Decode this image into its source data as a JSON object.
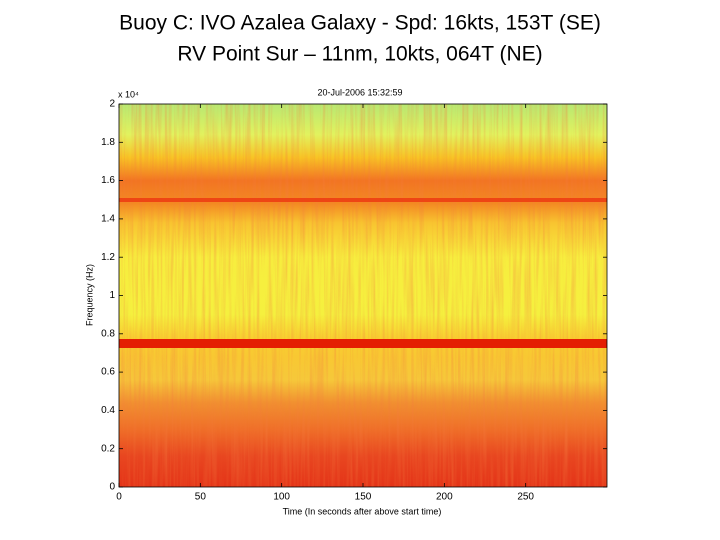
{
  "header": {
    "line1": "Buoy C: IVO Azalea Galaxy - Spd: 16kts, 153T (SE)",
    "line2": "RV Point Sur – 11nm,   10kts, 064T (NE)"
  },
  "chart_data": {
    "type": "spectrogram",
    "title": "20-Jul-2006 15:32:59",
    "x_label": "Time (In seconds after above start time)",
    "y_label": "Frequency (Hz)",
    "y_multiplier": "x 10⁴",
    "xlim": [
      0,
      300
    ],
    "xticks": [
      0,
      50,
      100,
      150,
      200,
      250
    ],
    "ylim": [
      0,
      20000
    ],
    "yticks": [
      0,
      {
        "value": 2000,
        "label": "0.2"
      },
      {
        "value": 4000,
        "label": "0.4"
      },
      {
        "value": 6000,
        "label": "0.6"
      },
      {
        "value": 8000,
        "label": "0.8"
      },
      {
        "value": 10000,
        "label": "1"
      },
      {
        "value": 12000,
        "label": "1.2"
      },
      {
        "value": 14000,
        "label": "1.4"
      },
      {
        "value": 16000,
        "label": "1.6"
      },
      {
        "value": 18000,
        "label": "1.8"
      },
      {
        "value": 20000,
        "label": "2"
      }
    ]
  }
}
